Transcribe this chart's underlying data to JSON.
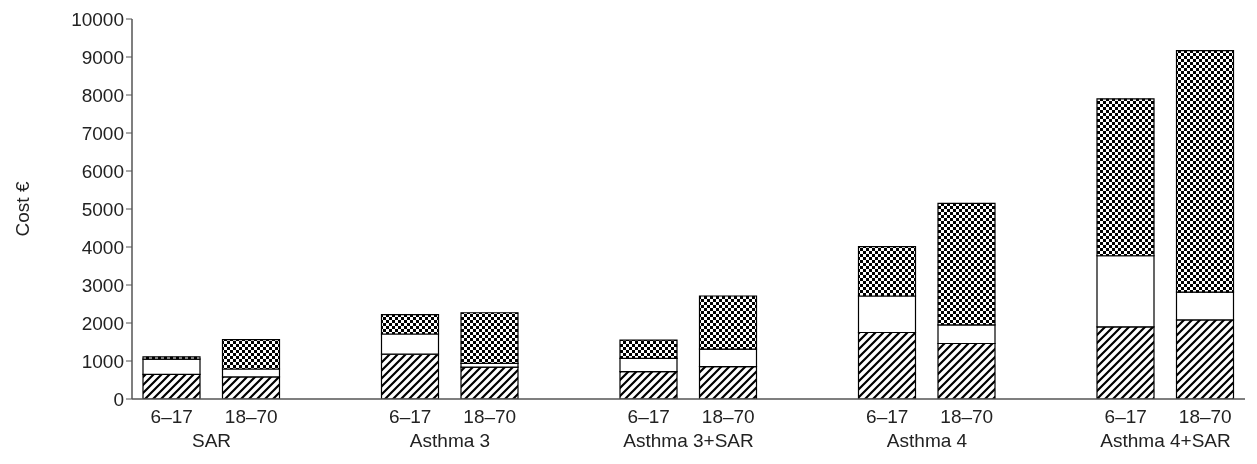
{
  "chart_data": {
    "type": "bar",
    "stacked": true,
    "ylabel": "Cost €",
    "categories": [
      "6–17",
      "18–70",
      null,
      "6–17",
      "18–70",
      null,
      "6–17",
      "18–70",
      null,
      "6–17",
      "18–70",
      null,
      "6–17",
      "18–70"
    ],
    "series": [
      {
        "color": "#000000",
        "values": [
          650,
          580,
          null,
          1180,
          840,
          null,
          720,
          850,
          null,
          1750,
          1460,
          null,
          1900,
          2080
        ]
      },
      {
        "color": "#ffffff",
        "values": [
          400,
          210,
          null,
          530,
          100,
          null,
          350,
          460,
          null,
          960,
          490,
          null,
          1870,
          730
        ]
      },
      {
        "color": "#000000",
        "values": [
          60,
          770,
          null,
          510,
          1330,
          null,
          480,
          1400,
          null,
          1300,
          3200,
          null,
          4130,
          6360
        ]
      }
    ],
    "annotations": [
      "SAR",
      "Asthma 3",
      "Asthma 3+SAR",
      "Asthma 4",
      "Asthma 4+SAR"
    ],
    "ylim": [
      0,
      10000
    ],
    "yticks": [
      0,
      1000,
      2000,
      3000,
      4000,
      5000,
      6000,
      7000,
      8000,
      9000,
      10000
    ],
    "grid": false
  }
}
